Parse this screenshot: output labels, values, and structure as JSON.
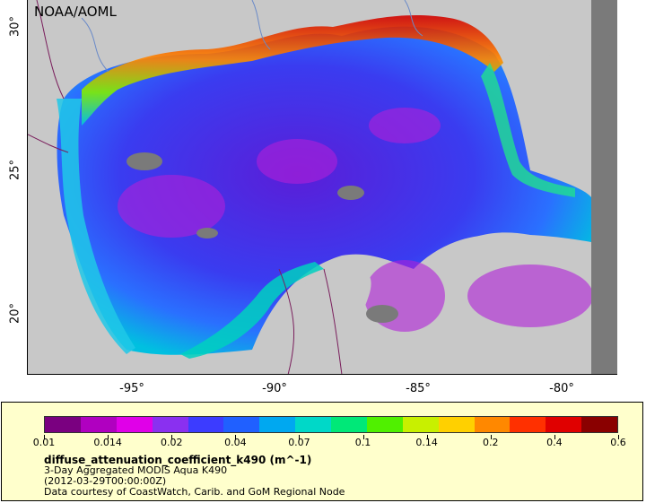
{
  "map": {
    "credit": "NOAA/AOML",
    "lat_labels": [
      "30°",
      "25°",
      "20°"
    ],
    "lon_labels": [
      "-95°",
      "-90°",
      "-85°",
      "-80°"
    ],
    "land_color": "#c8c8c8",
    "nodata_color": "#7a7a7a",
    "border_color": "#7a1e5c"
  },
  "legend": {
    "colors": [
      "#7a0080",
      "#b000c0",
      "#e000e8",
      "#8a30f0",
      "#3c3cff",
      "#2060ff",
      "#00a8f0",
      "#00d8c8",
      "#00e878",
      "#50f000",
      "#c8f000",
      "#ffd000",
      "#ff8800",
      "#ff3000",
      "#e00000",
      "#8a0000"
    ],
    "ticks": [
      "0.01",
      "0.014",
      "0.02",
      "0.04",
      "0.07",
      "0.1",
      "0.14",
      "0.2",
      "0.4",
      "0.6"
    ],
    "variable": "diffuse_attenuation_coefficient_k490 (m^-1)",
    "line1": "3-Day Aggregated MODIS Aqua K490",
    "line2": "(2012-03-29T00:00:00Z)",
    "line3": "Data courtesy of CoastWatch, Carib. and GoM Regional Node"
  }
}
